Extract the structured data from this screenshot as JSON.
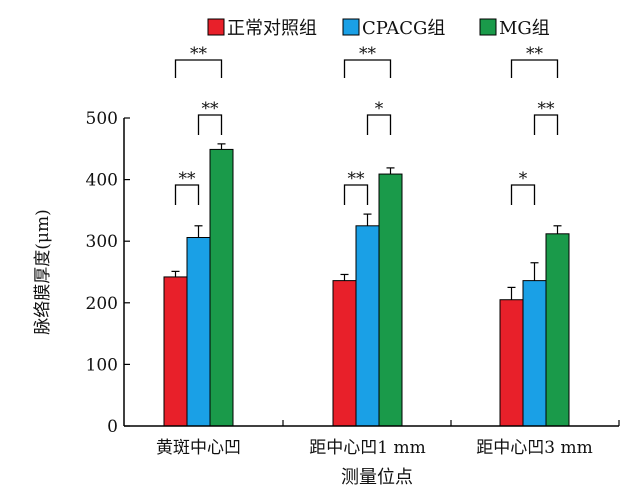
{
  "chart_data": {
    "type": "bar",
    "title": "",
    "xlabel": "测量位点",
    "ylabel": "脉络膜厚度(μm)",
    "categories": [
      "黄斑中心凹",
      "距中心凹1 mm",
      "距中心凹3 mm"
    ],
    "ylim": [
      0,
      500
    ],
    "yticks": [
      "0",
      "100",
      "200",
      "300",
      "400",
      "500"
    ],
    "grid": false,
    "legend_position": "top",
    "series": [
      {
        "name": "正常对照组",
        "color": "#e8202a",
        "values": [
          242,
          236,
          205
        ],
        "errors": [
          9,
          10,
          20
        ]
      },
      {
        "name": "CPACG组",
        "color": "#1aa0e6",
        "values": [
          306,
          325,
          236
        ],
        "errors": [
          19,
          19,
          29
        ]
      },
      {
        "name": "MG组",
        "color": "#1a9a4a",
        "values": [
          449,
          409,
          312
        ],
        "errors": [
          9,
          10,
          13
        ]
      }
    ],
    "significance": [
      {
        "category": 0,
        "from": 0,
        "to": 2,
        "label": "**",
        "level": 3
      },
      {
        "category": 0,
        "from": 1,
        "to": 2,
        "label": "**",
        "level": 1
      },
      {
        "category": 0,
        "from": 0,
        "to": 1,
        "label": "**",
        "level": 0
      },
      {
        "category": 1,
        "from": 0,
        "to": 2,
        "label": "**",
        "level": 3
      },
      {
        "category": 1,
        "from": 1,
        "to": 2,
        "label": "*",
        "level": 1
      },
      {
        "category": 1,
        "from": 0,
        "to": 1,
        "label": "**",
        "level": 0
      },
      {
        "category": 2,
        "from": 0,
        "to": 2,
        "label": "**",
        "level": 3
      },
      {
        "category": 2,
        "from": 1,
        "to": 2,
        "label": "**",
        "level": 1
      },
      {
        "category": 2,
        "from": 0,
        "to": 1,
        "label": "*",
        "level": 0
      }
    ]
  }
}
